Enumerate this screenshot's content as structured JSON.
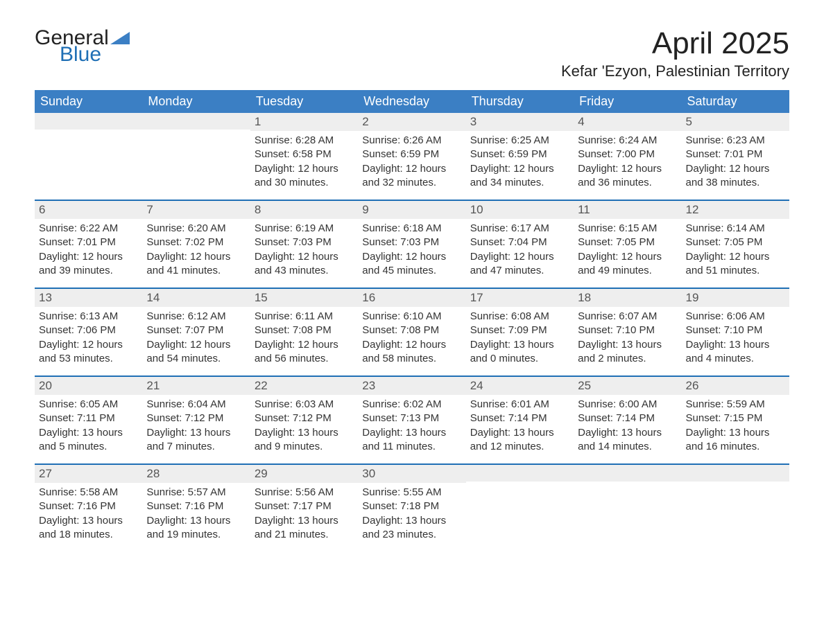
{
  "brand": {
    "word1": "General",
    "word2": "Blue"
  },
  "title": "April 2025",
  "location": "Kefar 'Ezyon, Palestinian Territory",
  "colors": {
    "header_blue": "#3b7fc4",
    "accent_blue": "#1f6fb5",
    "stripe_gray": "#eeeeee",
    "text": "#333333",
    "title": "#222222",
    "background": "#ffffff"
  },
  "day_headers": [
    "Sunday",
    "Monday",
    "Tuesday",
    "Wednesday",
    "Thursday",
    "Friday",
    "Saturday"
  ],
  "weeks": [
    [
      {
        "date": "",
        "lines": [
          "",
          "",
          "",
          ""
        ]
      },
      {
        "date": "",
        "lines": [
          "",
          "",
          "",
          ""
        ]
      },
      {
        "date": "1",
        "lines": [
          "Sunrise: 6:28 AM",
          "Sunset: 6:58 PM",
          "Daylight: 12 hours",
          "and 30 minutes."
        ]
      },
      {
        "date": "2",
        "lines": [
          "Sunrise: 6:26 AM",
          "Sunset: 6:59 PM",
          "Daylight: 12 hours",
          "and 32 minutes."
        ]
      },
      {
        "date": "3",
        "lines": [
          "Sunrise: 6:25 AM",
          "Sunset: 6:59 PM",
          "Daylight: 12 hours",
          "and 34 minutes."
        ]
      },
      {
        "date": "4",
        "lines": [
          "Sunrise: 6:24 AM",
          "Sunset: 7:00 PM",
          "Daylight: 12 hours",
          "and 36 minutes."
        ]
      },
      {
        "date": "5",
        "lines": [
          "Sunrise: 6:23 AM",
          "Sunset: 7:01 PM",
          "Daylight: 12 hours",
          "and 38 minutes."
        ]
      }
    ],
    [
      {
        "date": "6",
        "lines": [
          "Sunrise: 6:22 AM",
          "Sunset: 7:01 PM",
          "Daylight: 12 hours",
          "and 39 minutes."
        ]
      },
      {
        "date": "7",
        "lines": [
          "Sunrise: 6:20 AM",
          "Sunset: 7:02 PM",
          "Daylight: 12 hours",
          "and 41 minutes."
        ]
      },
      {
        "date": "8",
        "lines": [
          "Sunrise: 6:19 AM",
          "Sunset: 7:03 PM",
          "Daylight: 12 hours",
          "and 43 minutes."
        ]
      },
      {
        "date": "9",
        "lines": [
          "Sunrise: 6:18 AM",
          "Sunset: 7:03 PM",
          "Daylight: 12 hours",
          "and 45 minutes."
        ]
      },
      {
        "date": "10",
        "lines": [
          "Sunrise: 6:17 AM",
          "Sunset: 7:04 PM",
          "Daylight: 12 hours",
          "and 47 minutes."
        ]
      },
      {
        "date": "11",
        "lines": [
          "Sunrise: 6:15 AM",
          "Sunset: 7:05 PM",
          "Daylight: 12 hours",
          "and 49 minutes."
        ]
      },
      {
        "date": "12",
        "lines": [
          "Sunrise: 6:14 AM",
          "Sunset: 7:05 PM",
          "Daylight: 12 hours",
          "and 51 minutes."
        ]
      }
    ],
    [
      {
        "date": "13",
        "lines": [
          "Sunrise: 6:13 AM",
          "Sunset: 7:06 PM",
          "Daylight: 12 hours",
          "and 53 minutes."
        ]
      },
      {
        "date": "14",
        "lines": [
          "Sunrise: 6:12 AM",
          "Sunset: 7:07 PM",
          "Daylight: 12 hours",
          "and 54 minutes."
        ]
      },
      {
        "date": "15",
        "lines": [
          "Sunrise: 6:11 AM",
          "Sunset: 7:08 PM",
          "Daylight: 12 hours",
          "and 56 minutes."
        ]
      },
      {
        "date": "16",
        "lines": [
          "Sunrise: 6:10 AM",
          "Sunset: 7:08 PM",
          "Daylight: 12 hours",
          "and 58 minutes."
        ]
      },
      {
        "date": "17",
        "lines": [
          "Sunrise: 6:08 AM",
          "Sunset: 7:09 PM",
          "Daylight: 13 hours",
          "and 0 minutes."
        ]
      },
      {
        "date": "18",
        "lines": [
          "Sunrise: 6:07 AM",
          "Sunset: 7:10 PM",
          "Daylight: 13 hours",
          "and 2 minutes."
        ]
      },
      {
        "date": "19",
        "lines": [
          "Sunrise: 6:06 AM",
          "Sunset: 7:10 PM",
          "Daylight: 13 hours",
          "and 4 minutes."
        ]
      }
    ],
    [
      {
        "date": "20",
        "lines": [
          "Sunrise: 6:05 AM",
          "Sunset: 7:11 PM",
          "Daylight: 13 hours",
          "and 5 minutes."
        ]
      },
      {
        "date": "21",
        "lines": [
          "Sunrise: 6:04 AM",
          "Sunset: 7:12 PM",
          "Daylight: 13 hours",
          "and 7 minutes."
        ]
      },
      {
        "date": "22",
        "lines": [
          "Sunrise: 6:03 AM",
          "Sunset: 7:12 PM",
          "Daylight: 13 hours",
          "and 9 minutes."
        ]
      },
      {
        "date": "23",
        "lines": [
          "Sunrise: 6:02 AM",
          "Sunset: 7:13 PM",
          "Daylight: 13 hours",
          "and 11 minutes."
        ]
      },
      {
        "date": "24",
        "lines": [
          "Sunrise: 6:01 AM",
          "Sunset: 7:14 PM",
          "Daylight: 13 hours",
          "and 12 minutes."
        ]
      },
      {
        "date": "25",
        "lines": [
          "Sunrise: 6:00 AM",
          "Sunset: 7:14 PM",
          "Daylight: 13 hours",
          "and 14 minutes."
        ]
      },
      {
        "date": "26",
        "lines": [
          "Sunrise: 5:59 AM",
          "Sunset: 7:15 PM",
          "Daylight: 13 hours",
          "and 16 minutes."
        ]
      }
    ],
    [
      {
        "date": "27",
        "lines": [
          "Sunrise: 5:58 AM",
          "Sunset: 7:16 PM",
          "Daylight: 13 hours",
          "and 18 minutes."
        ]
      },
      {
        "date": "28",
        "lines": [
          "Sunrise: 5:57 AM",
          "Sunset: 7:16 PM",
          "Daylight: 13 hours",
          "and 19 minutes."
        ]
      },
      {
        "date": "29",
        "lines": [
          "Sunrise: 5:56 AM",
          "Sunset: 7:17 PM",
          "Daylight: 13 hours",
          "and 21 minutes."
        ]
      },
      {
        "date": "30",
        "lines": [
          "Sunrise: 5:55 AM",
          "Sunset: 7:18 PM",
          "Daylight: 13 hours",
          "and 23 minutes."
        ]
      },
      {
        "date": "",
        "lines": [
          "",
          "",
          "",
          ""
        ]
      },
      {
        "date": "",
        "lines": [
          "",
          "",
          "",
          ""
        ]
      },
      {
        "date": "",
        "lines": [
          "",
          "",
          "",
          ""
        ]
      }
    ]
  ]
}
